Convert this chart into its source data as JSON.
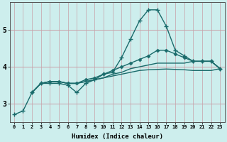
{
  "xlabel": "Humidex (Indice chaleur)",
  "ylabel": "",
  "background_color": "#cdeeed",
  "grid_color": "#c8a0a8",
  "line_color": "#1a6b6b",
  "xlim": [
    -0.5,
    23.5
  ],
  "ylim": [
    2.5,
    5.75
  ],
  "yticks": [
    3,
    4,
    5
  ],
  "xticks": [
    0,
    1,
    2,
    3,
    4,
    5,
    6,
    7,
    8,
    9,
    10,
    11,
    12,
    13,
    14,
    15,
    16,
    17,
    18,
    19,
    20,
    21,
    22,
    23
  ],
  "series": [
    {
      "x": [
        0,
        1,
        2,
        3,
        4,
        5,
        6,
        7,
        8,
        9,
        10,
        11,
        12,
        13,
        14,
        15,
        16,
        17,
        18,
        19,
        20,
        21,
        22,
        23
      ],
      "y": [
        2.7,
        2.8,
        3.3,
        3.55,
        3.55,
        3.55,
        3.5,
        3.3,
        3.55,
        3.65,
        3.8,
        3.85,
        4.25,
        4.75,
        5.25,
        5.55,
        5.55,
        5.1,
        4.45,
        4.3,
        4.15,
        4.15,
        4.15,
        3.95
      ],
      "marker": "+",
      "markersize": 4,
      "linewidth": 1.0
    },
    {
      "x": [
        2,
        3,
        4,
        5,
        6,
        7,
        8,
        9,
        10,
        11,
        12,
        13,
        14,
        15,
        16,
        17,
        18,
        19,
        20,
        21,
        22,
        23
      ],
      "y": [
        3.3,
        3.55,
        3.6,
        3.6,
        3.55,
        3.55,
        3.65,
        3.7,
        3.8,
        3.9,
        4.0,
        4.1,
        4.2,
        4.3,
        4.45,
        4.45,
        4.35,
        4.25,
        4.15,
        4.15,
        4.15,
        3.95
      ],
      "marker": "D",
      "markersize": 2.5,
      "linewidth": 1.0
    },
    {
      "x": [
        2,
        3,
        4,
        5,
        6,
        7,
        8,
        9,
        10,
        11,
        12,
        13,
        14,
        15,
        16,
        17,
        18,
        19,
        20,
        21,
        22,
        23
      ],
      "y": [
        3.3,
        3.55,
        3.6,
        3.6,
        3.55,
        3.55,
        3.6,
        3.65,
        3.7,
        3.8,
        3.85,
        3.95,
        4.0,
        4.05,
        4.1,
        4.1,
        4.1,
        4.1,
        4.15,
        4.15,
        4.15,
        3.95
      ],
      "marker": "none",
      "markersize": 0,
      "linewidth": 1.0
    },
    {
      "x": [
        2,
        3,
        4,
        5,
        6,
        7,
        8,
        9,
        10,
        11,
        12,
        13,
        14,
        15,
        16,
        17,
        18,
        19,
        20,
        21,
        22,
        23
      ],
      "y": [
        3.3,
        3.55,
        3.6,
        3.6,
        3.55,
        3.55,
        3.6,
        3.65,
        3.7,
        3.75,
        3.8,
        3.85,
        3.9,
        3.92,
        3.93,
        3.94,
        3.93,
        3.92,
        3.9,
        3.9,
        3.9,
        3.95
      ],
      "marker": "none",
      "markersize": 0,
      "linewidth": 1.0
    }
  ]
}
